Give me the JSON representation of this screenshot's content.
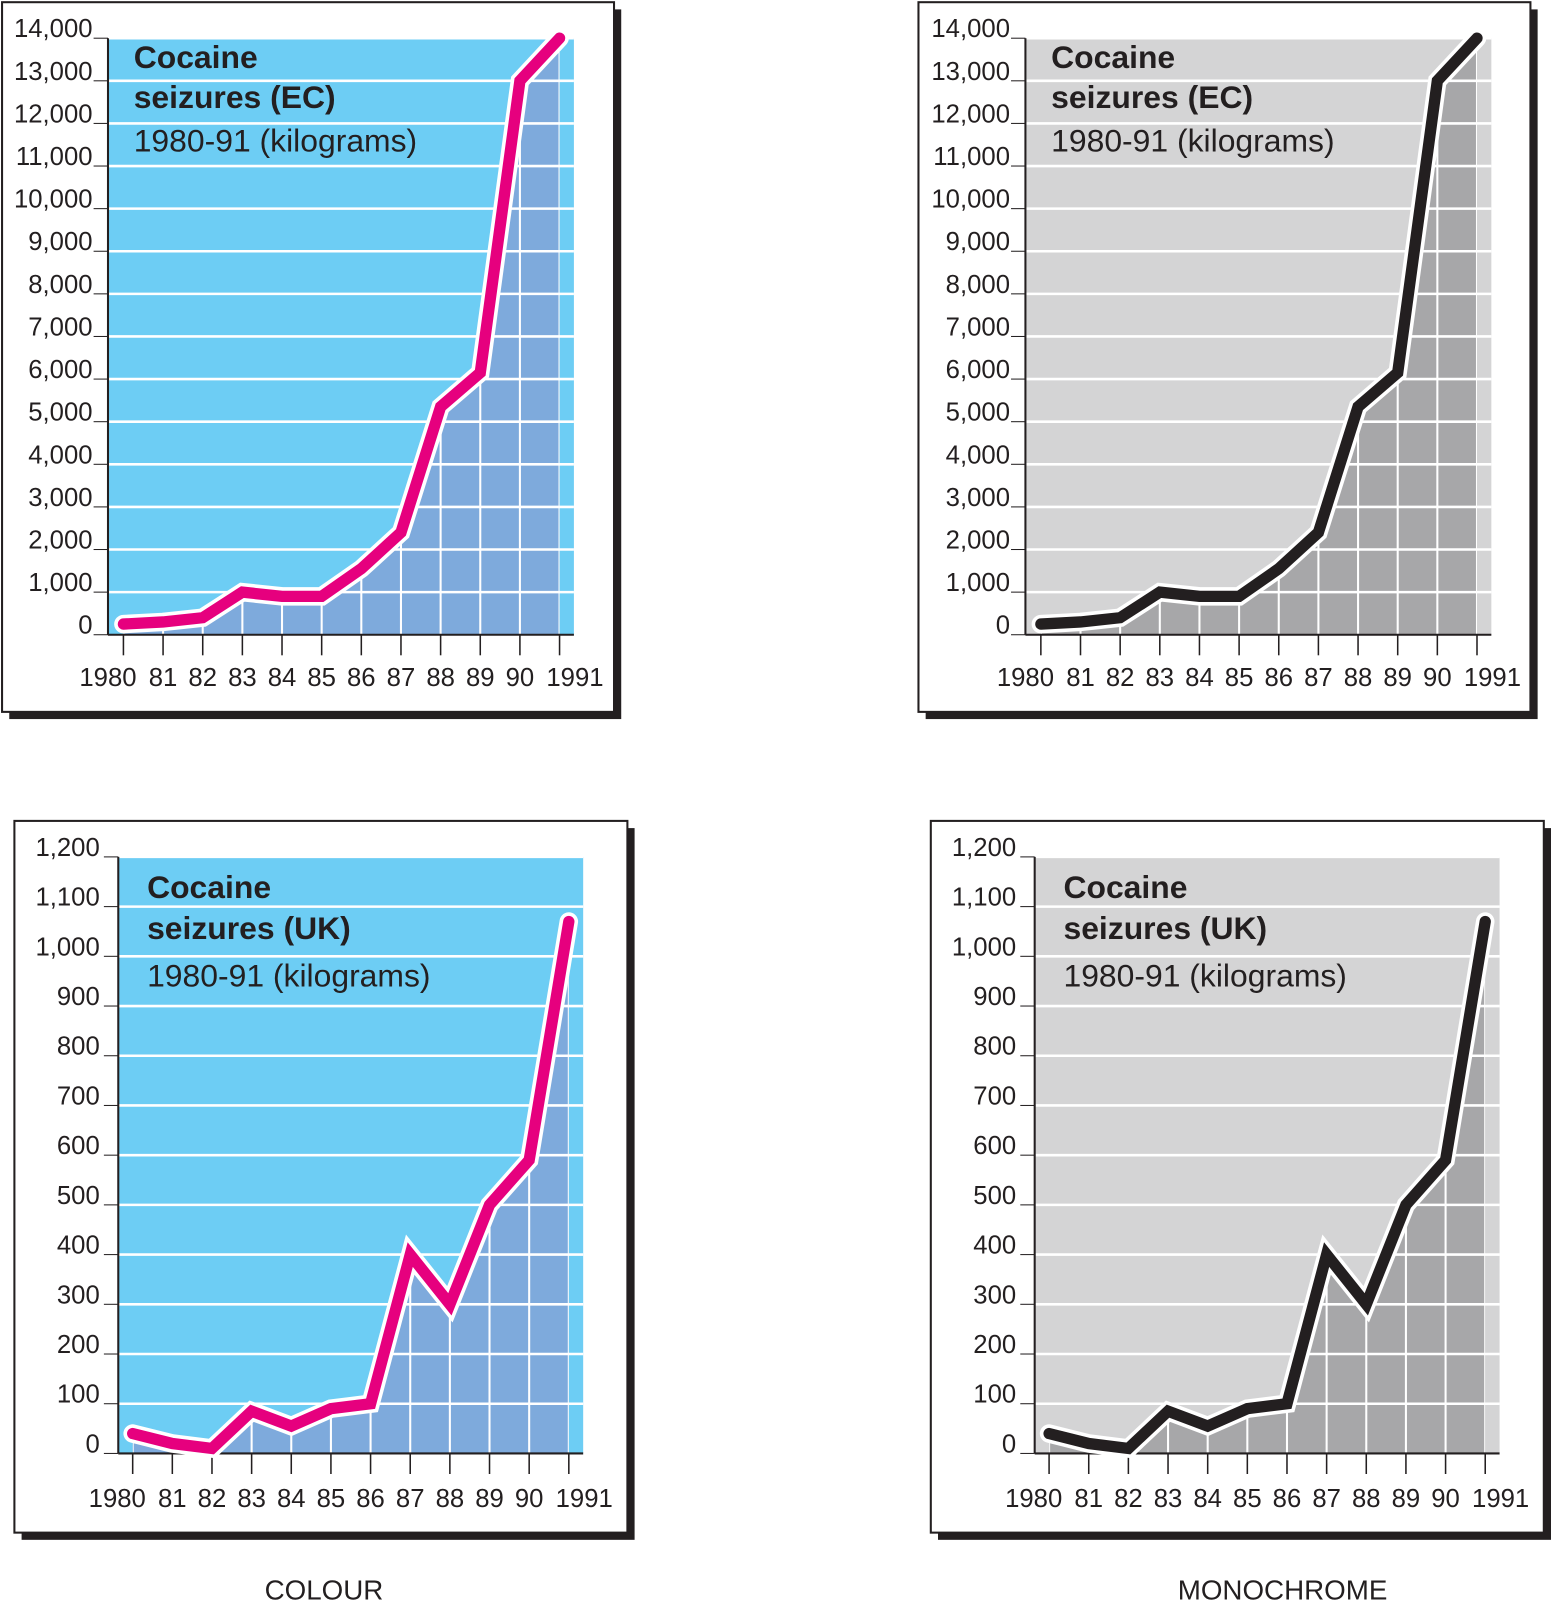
{
  "captions": {
    "colour": "COLOUR",
    "monochrome": "MONOCHROME"
  },
  "colors": {
    "colour_bg": "#6dcdf4",
    "colour_area": "#7eaadc",
    "colour_line": "#e6007e",
    "mono_bg": "#d4d4d5",
    "mono_area": "#a7a7a9",
    "mono_line": "#231f20",
    "grid": "#ffffff",
    "axis": "#231f20"
  },
  "chart_data": [
    {
      "id": "ec",
      "type": "area",
      "title_line1": "Cocaine",
      "title_line2": "seizures (EC)",
      "subtitle": "1980-91 (kilograms)",
      "x": [
        1980,
        1981,
        1982,
        1983,
        1984,
        1985,
        1986,
        1987,
        1988,
        1989,
        1990,
        1991
      ],
      "x_tick_labels": [
        "1980",
        "81",
        "82",
        "83",
        "84",
        "85",
        "86",
        "87",
        "88",
        "89",
        "90",
        "1991"
      ],
      "values": [
        250,
        300,
        400,
        1000,
        900,
        900,
        1550,
        2400,
        5350,
        6150,
        13000,
        14000
      ],
      "ylim": [
        0,
        14000
      ],
      "y_tick_labels": [
        "0",
        "1,000",
        "2,000",
        "3,000",
        "4,000",
        "5,000",
        "6,000",
        "7,000",
        "8,000",
        "9,000",
        "10,000",
        "11,000",
        "12,000",
        "13,000",
        "14,000"
      ],
      "grid": true
    },
    {
      "id": "uk",
      "type": "area",
      "title_line1": "Cocaine",
      "title_line2": "seizures (UK)",
      "subtitle": "1980-91 (kilograms)",
      "x": [
        1980,
        1981,
        1982,
        1983,
        1984,
        1985,
        1986,
        1987,
        1988,
        1989,
        1990,
        1991
      ],
      "x_tick_labels": [
        "1980",
        "81",
        "82",
        "83",
        "84",
        "85",
        "86",
        "87",
        "88",
        "89",
        "90",
        "1991"
      ],
      "values": [
        40,
        20,
        10,
        85,
        55,
        90,
        100,
        400,
        300,
        500,
        590,
        1070
      ],
      "ylim": [
        0,
        1200
      ],
      "y_tick_labels": [
        "0",
        "100",
        "200",
        "300",
        "400",
        "500",
        "600",
        "700",
        "800",
        "900",
        "1,000",
        "1,100",
        "1,200"
      ],
      "grid": true
    }
  ]
}
